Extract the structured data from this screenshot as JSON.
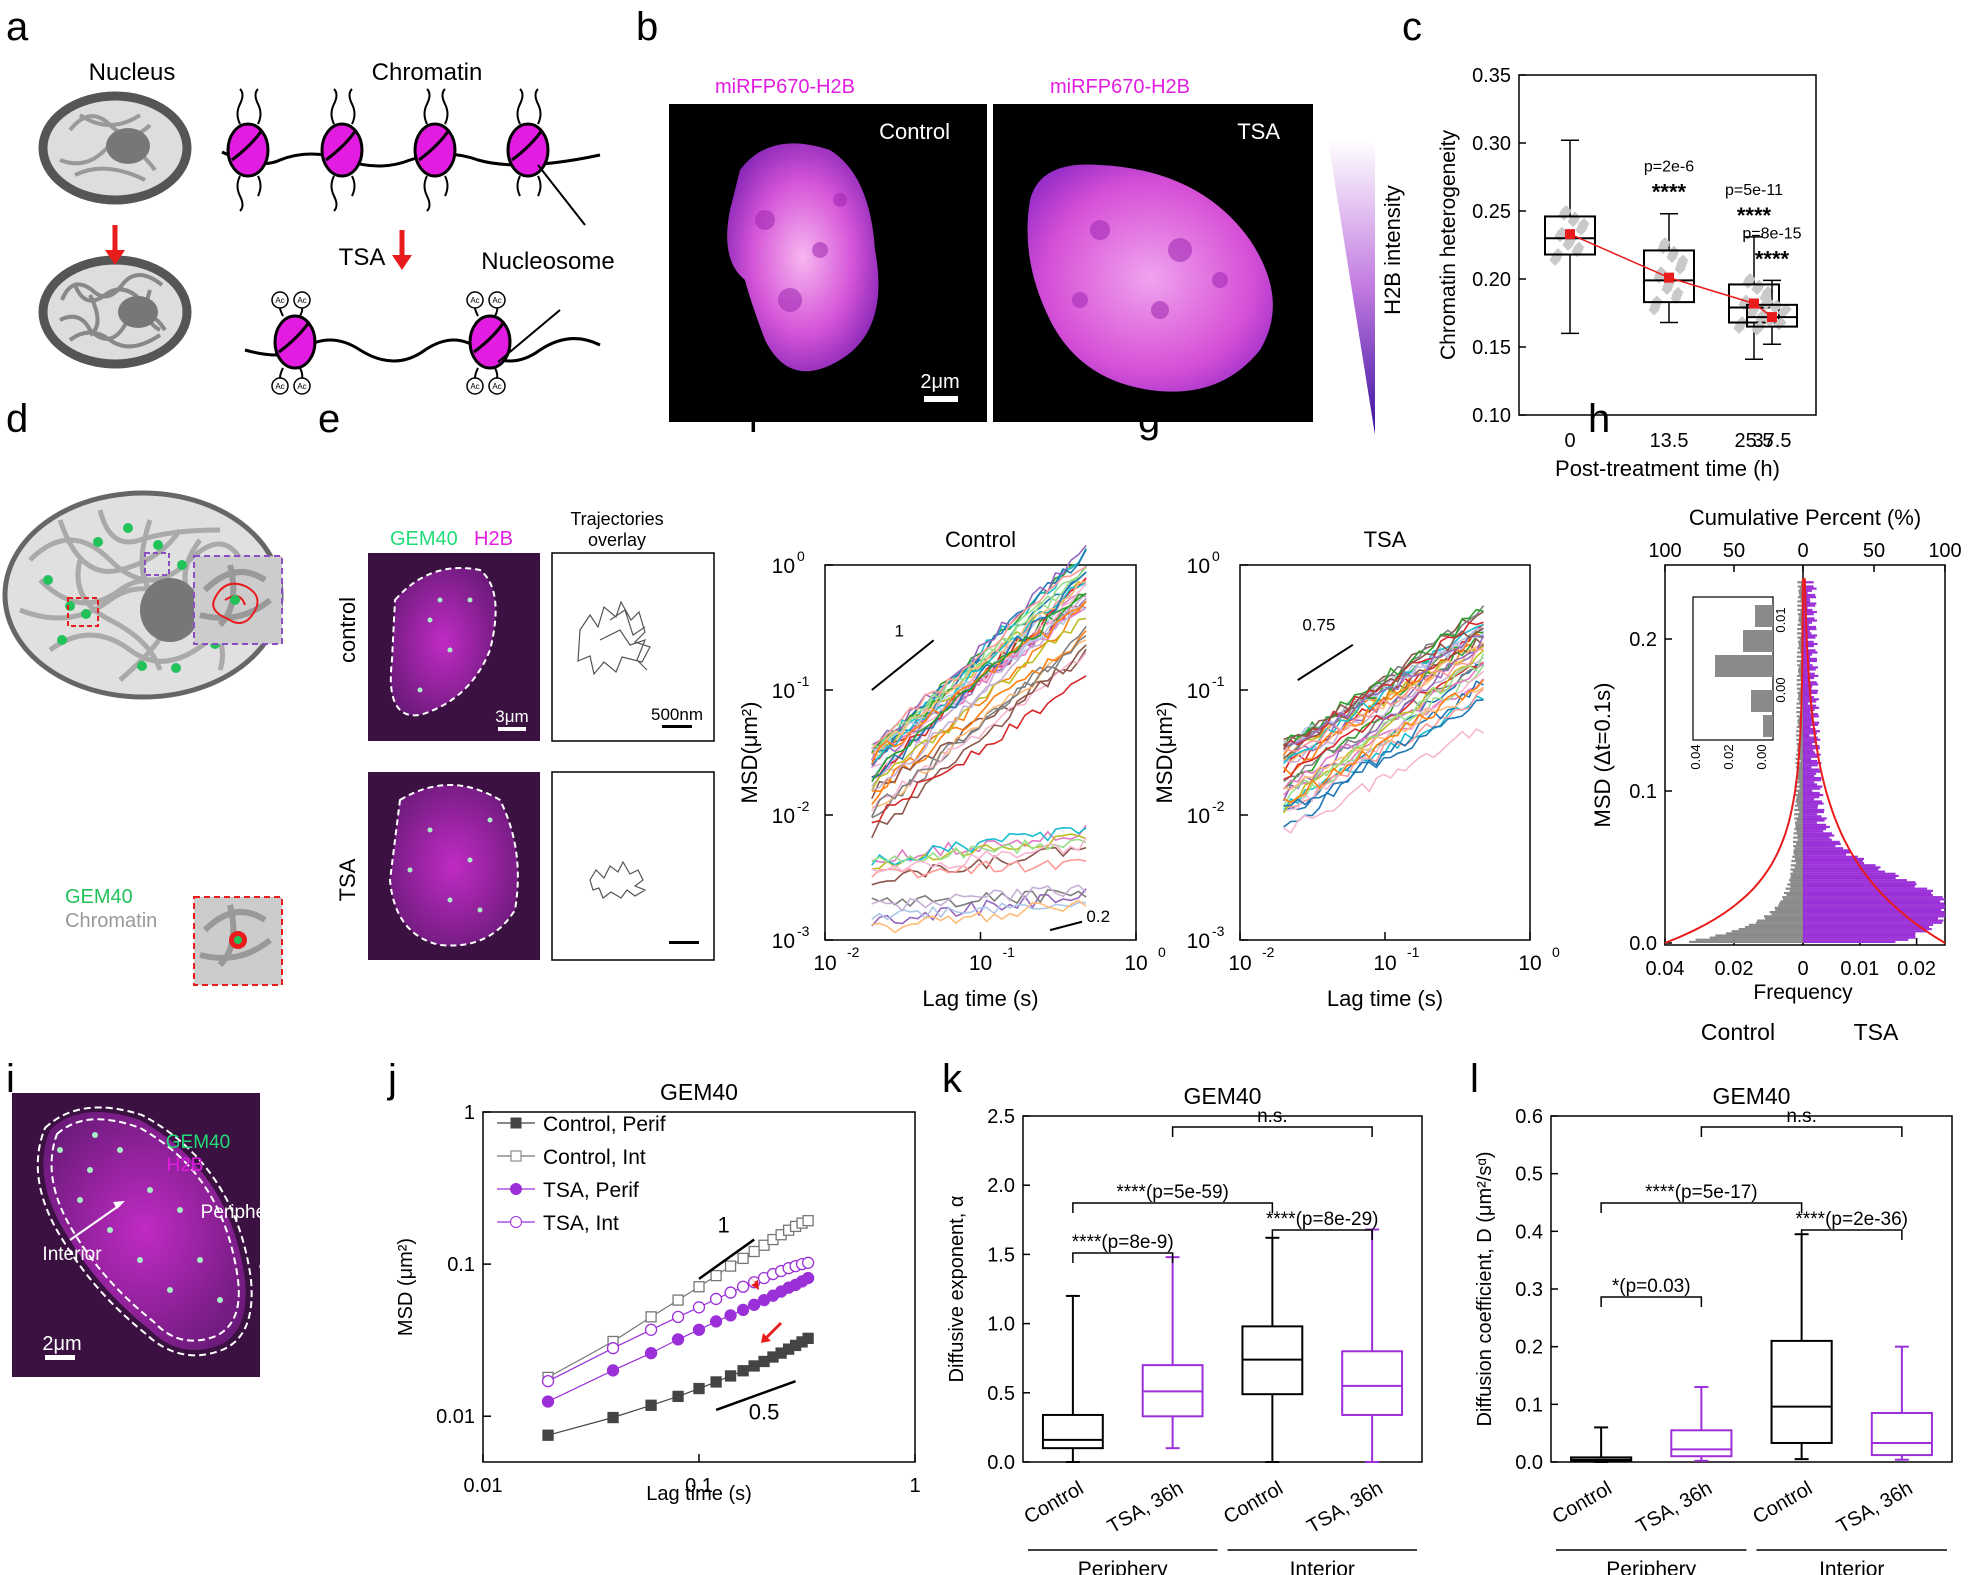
{
  "colors": {
    "magenta": "#e21ce0",
    "green": "#22dd77",
    "purple": "#9b30d8",
    "red": "#e81c1c",
    "black": "#000000",
    "grey": "#888888"
  },
  "panels": {
    "a": "a",
    "b": "b",
    "c": "c",
    "d": "d",
    "e": "e",
    "f": "f",
    "g": "g",
    "h": "h",
    "i": "i",
    "j": "j",
    "k": "k",
    "l": "l"
  },
  "panel_a": {
    "nucleus": "Nucleus",
    "chromatin": "Chromatin",
    "tsa": "TSA",
    "nucleosome": "Nucleosome",
    "ac": "Ac"
  },
  "panel_b": {
    "label_left": "miRFP670-H2B",
    "label_right": "miRFP670-H2B",
    "control": "Control",
    "tsa": "TSA",
    "scale": "2μm",
    "intensity": "H2B intensity"
  },
  "panel_d": {
    "gem40": "GEM40",
    "chromatin": "Chromatin"
  },
  "panel_e": {
    "gem40": "GEM40",
    "h2b": "H2B",
    "traj_title_1": "Trajectories",
    "traj_title_2": "overlay",
    "control": "control",
    "tsa": "TSA",
    "scale_img": "3μm",
    "scale_traj": "500nm"
  },
  "panel_i": {
    "gem40": "GEM40",
    "h2b": "H2B",
    "periphery": "Periphery",
    "interior": "Interior",
    "scale": "2μm"
  },
  "chart_data": [
    {
      "id": "c",
      "type": "box",
      "xlabel": "Post-treatment time (h)",
      "ylabel": "Chromatin heterogeneity",
      "categories": [
        "0",
        "13.5",
        "25.5",
        "37.5"
      ],
      "ylim": [
        0.1,
        0.35
      ],
      "yticks": [
        "0.10",
        "0.15",
        "0.20",
        "0.25",
        "0.30",
        "0.35"
      ],
      "boxes": [
        {
          "min": 0.16,
          "q1": 0.218,
          "median": 0.23,
          "q3": 0.246,
          "max": 0.302,
          "mean": 0.233
        },
        {
          "min": 0.168,
          "q1": 0.183,
          "median": 0.199,
          "q3": 0.221,
          "max": 0.248,
          "mean": 0.201
        },
        {
          "min": 0.141,
          "q1": 0.168,
          "median": 0.179,
          "q3": 0.196,
          "max": 0.231,
          "mean": 0.182
        },
        {
          "min": 0.152,
          "q1": 0.165,
          "median": 0.172,
          "q3": 0.181,
          "max": 0.199,
          "mean": 0.172
        }
      ],
      "pvalues": [
        "",
        "p=2e-6",
        "p=5e-11",
        "p=8e-15"
      ],
      "stars": [
        "",
        "****",
        "****",
        "****"
      ]
    },
    {
      "id": "f",
      "type": "line",
      "title": "Control",
      "xlabel": "Lag time (s)",
      "ylabel": "MSD(μm²)",
      "xlim": [
        0.01,
        1
      ],
      "ylim": [
        0.001,
        1
      ],
      "slope_labels": [
        "1",
        "0.2"
      ],
      "series_count": 48
    },
    {
      "id": "g",
      "type": "line",
      "title": "TSA",
      "xlabel": "Lag time (s)",
      "ylabel": "MSD(μm²)",
      "xlim": [
        0.01,
        1
      ],
      "ylim": [
        0.001,
        1
      ],
      "slope_labels": [
        "0.75"
      ],
      "series_count": 38
    },
    {
      "id": "h",
      "type": "histogram",
      "xlabel": "Frequency",
      "ylabel": "MSD (Δt=0.1s)",
      "top_label": "Cumulative Percent (%)",
      "left_group": "Control",
      "right_group": "TSA",
      "xticks_bottom": [
        "0.04",
        "0.02",
        "0",
        "0.01",
        "0.02"
      ],
      "xticks_top": [
        "100",
        "50",
        "0",
        "50",
        "100"
      ],
      "yticks": [
        "0.0",
        "0.1",
        "0.2"
      ],
      "inset_xticks": [
        "0.04",
        "0.02",
        "0.00"
      ],
      "inset_yticks": [
        "0.01",
        "0.00"
      ]
    },
    {
      "id": "j",
      "type": "line",
      "title": "GEM40",
      "xlabel": "Lag time (s)",
      "ylabel": "MSD (μm²)",
      "xlim": [
        0.01,
        1
      ],
      "ylim": [
        0.005,
        1
      ],
      "x": [
        0.02,
        0.04,
        0.06,
        0.08,
        0.1,
        0.12,
        0.14,
        0.16,
        0.18,
        0.2,
        0.22,
        0.24,
        0.26,
        0.28,
        0.3,
        0.32
      ],
      "series": [
        {
          "name": "Control, Perif",
          "values": [
            0.0075,
            0.0098,
            0.0118,
            0.0135,
            0.0152,
            0.0168,
            0.0184,
            0.0199,
            0.0214,
            0.0229,
            0.0245,
            0.026,
            0.0276,
            0.0292,
            0.0308,
            0.0325
          ]
        },
        {
          "name": "Control, Int",
          "values": [
            0.018,
            0.031,
            0.045,
            0.058,
            0.071,
            0.084,
            0.097,
            0.109,
            0.121,
            0.133,
            0.145,
            0.156,
            0.167,
            0.177,
            0.186,
            0.193
          ]
        },
        {
          "name": "TSA, Perif",
          "values": [
            0.0125,
            0.02,
            0.026,
            0.032,
            0.037,
            0.042,
            0.046,
            0.05,
            0.054,
            0.058,
            0.062,
            0.066,
            0.07,
            0.073,
            0.077,
            0.081
          ]
        },
        {
          "name": "TSA, Int",
          "values": [
            0.017,
            0.028,
            0.037,
            0.045,
            0.052,
            0.059,
            0.065,
            0.071,
            0.076,
            0.081,
            0.086,
            0.09,
            0.094,
            0.097,
            0.1,
            0.102
          ]
        }
      ],
      "slope_labels": [
        "1",
        "0.5"
      ]
    },
    {
      "id": "k",
      "type": "box",
      "title": "GEM40",
      "ylabel": "Diffusive exponent, α",
      "ylim": [
        0,
        2.5
      ],
      "yticks": [
        "0.0",
        "0.5",
        "1.0",
        "1.5",
        "2.0",
        "2.5"
      ],
      "categories": [
        "Control",
        "TSA, 36h",
        "Control",
        "TSA, 36h"
      ],
      "groups": [
        "Periphery",
        "Interior"
      ],
      "boxes": [
        {
          "min": 0.0,
          "q1": 0.1,
          "median": 0.16,
          "q3": 0.34,
          "max": 1.2
        },
        {
          "min": 0.1,
          "q1": 0.33,
          "median": 0.51,
          "q3": 0.7,
          "max": 1.48
        },
        {
          "min": 0.0,
          "q1": 0.49,
          "median": 0.74,
          "q3": 0.98,
          "max": 1.62
        },
        {
          "min": 0.0,
          "q1": 0.34,
          "median": 0.55,
          "q3": 0.8,
          "max": 1.68
        }
      ],
      "significance": [
        "****(p=8e-9)",
        "****(p=5e-59)",
        "****(p=8e-29)",
        "n.s."
      ]
    },
    {
      "id": "l",
      "type": "box",
      "title": "GEM40",
      "ylabel": "Diffusion coefficient, D (μm²/sᵅ)",
      "ylim": [
        0,
        0.6
      ],
      "yticks": [
        "0.0",
        "0.1",
        "0.2",
        "0.3",
        "0.4",
        "0.5",
        "0.6"
      ],
      "categories": [
        "Control",
        "TSA, 36h",
        "Control",
        "TSA, 36h"
      ],
      "groups": [
        "Periphery",
        "Interior"
      ],
      "boxes": [
        {
          "min": 0.0,
          "q1": 0.002,
          "median": 0.004,
          "q3": 0.008,
          "max": 0.06
        },
        {
          "min": 0.002,
          "q1": 0.01,
          "median": 0.022,
          "q3": 0.055,
          "max": 0.13
        },
        {
          "min": 0.005,
          "q1": 0.033,
          "median": 0.096,
          "q3": 0.21,
          "max": 0.395
        },
        {
          "min": 0.004,
          "q1": 0.012,
          "median": 0.033,
          "q3": 0.085,
          "max": 0.2
        }
      ],
      "significance": [
        "*(p=0.03)",
        "****(p=5e-17)",
        "****(p=2e-36)",
        "n.s."
      ]
    }
  ]
}
